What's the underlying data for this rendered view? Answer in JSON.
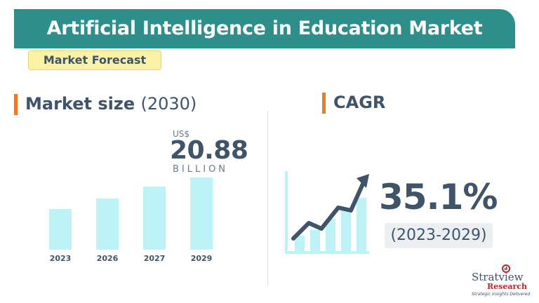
{
  "header": {
    "title": "Artificial Intelligence in Education Market",
    "subtitle": "Market Forecast"
  },
  "market_size": {
    "label": "Market size",
    "year": "(2030)",
    "currency": "US$",
    "value": "20.88",
    "unit": "BILLION"
  },
  "cagr": {
    "label": "CAGR",
    "value": "35.1%",
    "period": "(2023-2029)"
  },
  "logo": {
    "name": "Stratview",
    "sub": "Research",
    "tagline": "Strategic Insights Delivered"
  },
  "colors": {
    "banner": "#2e8f8a",
    "accent": "#ee7a26",
    "bar": "#bdf3f6",
    "text": "#3f5468",
    "highlight": "#fbf2a6"
  },
  "icons": [
    "growth-chart-icon",
    "magnifier-logo-icon"
  ],
  "chart_data": {
    "type": "bar",
    "categories": [
      "2023",
      "2026",
      "2027",
      "2029"
    ],
    "values": [
      58,
      73,
      90,
      103
    ],
    "ylim": [
      0,
      110
    ],
    "grid": false,
    "xlabel": "",
    "ylabel": ""
  }
}
